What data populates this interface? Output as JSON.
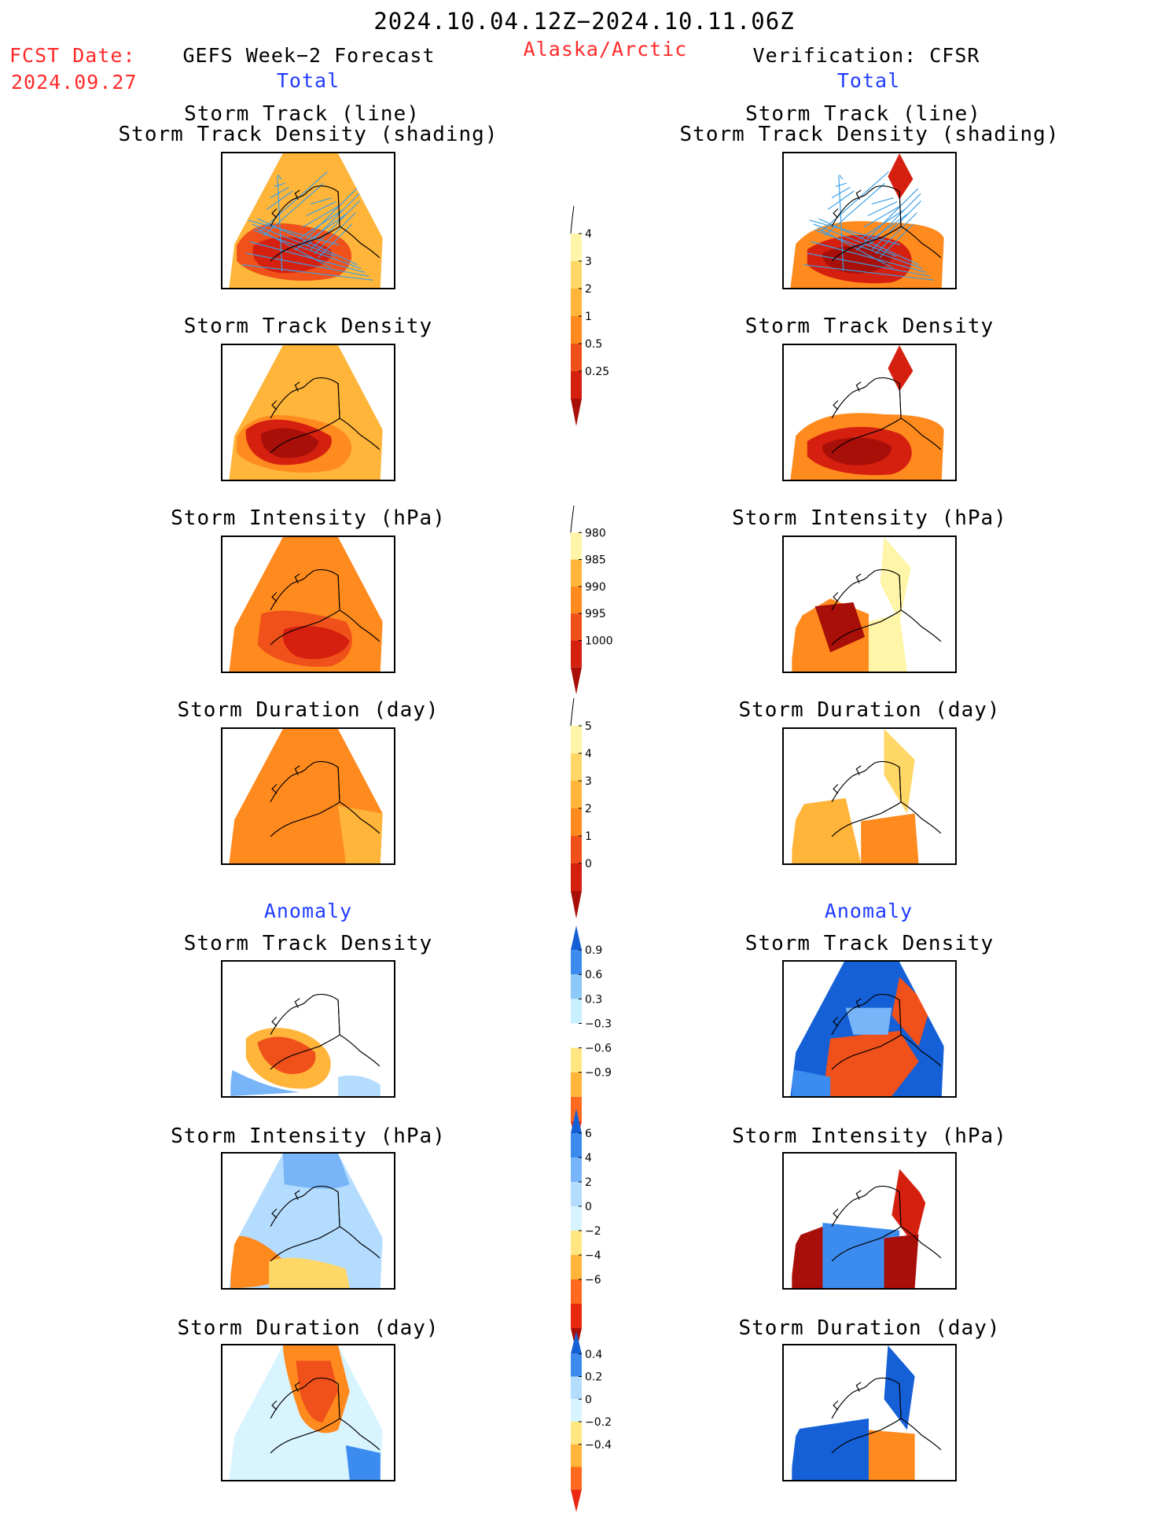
{
  "header": {
    "date_range": "2024.10.04.12Z−2024.10.11.06Z",
    "fcst_label": "FCST Date:",
    "fcst_date": "2024.09.27",
    "left_title": "GEFS Week−2 Forecast",
    "region": "Alaska/Arctic",
    "right_title": "Verification: CFSR",
    "left_section_total": "Total",
    "right_section_total": "Total",
    "left_section_anomaly": "Anomaly",
    "right_section_anomaly": "Anomaly"
  },
  "colors": {
    "label_red": "#ff2a2a",
    "label_blue": "#1f3cff",
    "track_line": "#3aa0e6",
    "coast": "#000000"
  },
  "panels": {
    "left": [
      {
        "title_1": "Storm Track (line)",
        "title_2": "Storm Track Density (shading)",
        "map": "gefs-track"
      },
      {
        "title_1": "Storm Track Density",
        "map": "gefs-density"
      },
      {
        "title_1": "Storm Intensity (hPa)",
        "map": "gefs-intensity"
      },
      {
        "title_1": "Storm Duration (day)",
        "map": "gefs-duration"
      },
      {
        "title_1": "Storm Track Density",
        "map": "gefs-density-anom"
      },
      {
        "title_1": "Storm Intensity (hPa)",
        "map": "gefs-intensity-anom"
      },
      {
        "title_1": "Storm Duration (day)",
        "map": "gefs-duration-anom"
      }
    ],
    "right": [
      {
        "title_1": "Storm Track (line)",
        "title_2": "Storm Track Density (shading)",
        "map": "cfsr-track"
      },
      {
        "title_1": "Storm Track Density",
        "map": "cfsr-density"
      },
      {
        "title_1": "Storm Intensity (hPa)",
        "map": "cfsr-intensity"
      },
      {
        "title_1": "Storm Duration (day)",
        "map": "cfsr-duration"
      },
      {
        "title_1": "Storm Track Density",
        "map": "cfsr-density-anom"
      },
      {
        "title_1": "Storm Intensity (hPa)",
        "map": "cfsr-intensity-anom"
      },
      {
        "title_1": "Storm Duration (day)",
        "map": "cfsr-duration-anom"
      }
    ]
  },
  "chart_data": [
    {
      "type": "colorbar",
      "name": "density",
      "levels": [
        "0.25",
        "0.5",
        "1",
        "2",
        "3",
        "4"
      ],
      "colors": [
        "#ffffff",
        "#fff5a8",
        "#ffd766",
        "#ffb43a",
        "#ff8a1e",
        "#f0501a",
        "#d6200f",
        "#a80f08"
      ]
    },
    {
      "type": "colorbar",
      "name": "intensity",
      "levels": [
        "980",
        "985",
        "990",
        "995",
        "1000"
      ],
      "colors": [
        "#a80f08",
        "#d6200f",
        "#f0501a",
        "#ff8a1e",
        "#ffb43a",
        "#fff5a8",
        "#ffffff"
      ],
      "reversed": true
    },
    {
      "type": "colorbar",
      "name": "duration",
      "levels": [
        "0",
        "1",
        "2",
        "3",
        "4",
        "5"
      ],
      "colors": [
        "#ffffff",
        "#fff5a8",
        "#ffd766",
        "#ffb43a",
        "#ff8a1e",
        "#f0501a",
        "#d6200f",
        "#a80f08"
      ]
    },
    {
      "type": "colorbar",
      "name": "density-anom",
      "levels": [
        "−0.9",
        "−0.6",
        "−0.3",
        "0.3",
        "0.6",
        "0.9"
      ],
      "colors": [
        "#1560d6",
        "#3c8cf0",
        "#8cc8f8",
        "#c8f0ff",
        "#ffffff",
        "#ffe680",
        "#ffb43a",
        "#ff6a1e",
        "#e82810"
      ]
    },
    {
      "type": "colorbar",
      "name": "intensity-anom",
      "levels": [
        "−6",
        "−4",
        "−2",
        "0",
        "2",
        "4",
        "6"
      ],
      "colors": [
        "#1560d6",
        "#3c8cf0",
        "#78b4f8",
        "#b4dcff",
        "#d8f4ff",
        "#ffe680",
        "#ffb43a",
        "#ff6a1e",
        "#e82810",
        "#a80f08"
      ]
    },
    {
      "type": "colorbar",
      "name": "duration-anom",
      "levels": [
        "−0.4",
        "−0.2",
        "0",
        "0.2",
        "0.4"
      ],
      "colors": [
        "#1560d6",
        "#3c8cf0",
        "#b4dcff",
        "#d8f4ff",
        "#ffe680",
        "#ffb43a",
        "#ff6a1e",
        "#e82810"
      ]
    }
  ]
}
